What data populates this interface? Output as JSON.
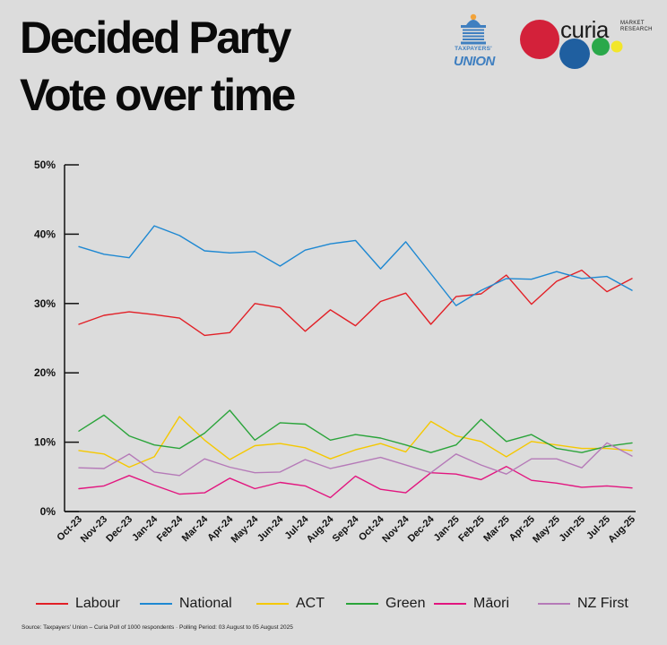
{
  "title_line1": "Decided Party",
  "title_line2": "Vote over time",
  "logos": {
    "taxpayers_union_line1": "TAXPAYERS'",
    "taxpayers_union_line2": "UNION",
    "curia_word": "curia",
    "curia_sub": "MARKET RESEARCH",
    "curia_colors": [
      "#d3213a",
      "#1f5fa0",
      "#2aa84a",
      "#f2e62b"
    ]
  },
  "source": "Source: Taxpayers' Union – Curia Poll of 1000 respondents · Polling Period: 03 August to 05 August 2025",
  "chart_data": {
    "type": "line",
    "title": "Decided Party Vote over time",
    "xlabel": "",
    "ylabel": "",
    "ylim": [
      0,
      50
    ],
    "yticks": [
      0,
      10,
      20,
      30,
      40,
      50
    ],
    "ytick_labels": [
      "0%",
      "10%",
      "20%",
      "30%",
      "40%",
      "50%"
    ],
    "grid": false,
    "legend_position": "bottom",
    "categories": [
      "Oct-23",
      "Nov-23",
      "Dec-23",
      "Jan-24",
      "Feb-24",
      "Mar-24",
      "Apr-24",
      "May-24",
      "Jun-24",
      "Jul-24",
      "Aug-24",
      "Sep-24",
      "Oct-24",
      "Nov-24",
      "Dec-24",
      "Jan-25",
      "Feb-25",
      "Mar-25",
      "Apr-25",
      "May-25",
      "Jun-25",
      "Jul-25",
      "Aug-25"
    ],
    "series": [
      {
        "name": "Labour",
        "color": "#e21f26",
        "values": [
          27.0,
          28.3,
          28.8,
          28.4,
          27.9,
          25.4,
          25.8,
          30.0,
          29.4,
          26.0,
          29.1,
          26.8,
          30.3,
          31.5,
          27.0,
          31.0,
          31.4,
          34.1,
          29.9,
          33.2,
          34.8,
          31.7,
          33.6
        ]
      },
      {
        "name": "National",
        "color": "#1e88d2",
        "values": [
          38.2,
          37.1,
          36.6,
          41.2,
          39.8,
          37.6,
          37.3,
          37.5,
          35.4,
          37.7,
          38.6,
          39.1,
          35.0,
          38.9,
          34.3,
          29.7,
          31.9,
          33.6,
          33.5,
          34.6,
          33.6,
          33.9,
          31.9
        ]
      },
      {
        "name": "ACT",
        "color": "#f5c800",
        "values": [
          8.8,
          8.3,
          6.4,
          7.9,
          13.7,
          10.3,
          7.5,
          9.5,
          9.8,
          9.2,
          7.6,
          8.9,
          9.8,
          8.6,
          13.0,
          10.9,
          10.1,
          7.9,
          10.1,
          9.6,
          9.1,
          9.1,
          8.8
        ]
      },
      {
        "name": "Green",
        "color": "#2aa43a",
        "values": [
          11.6,
          13.9,
          10.9,
          9.6,
          9.1,
          11.3,
          14.6,
          10.3,
          12.8,
          12.6,
          10.3,
          11.1,
          10.6,
          9.6,
          8.5,
          9.6,
          13.3,
          10.1,
          11.1,
          9.1,
          8.5,
          9.4,
          9.9
        ]
      },
      {
        "name": "Māori",
        "color": "#e2157f",
        "values": [
          3.3,
          3.7,
          5.2,
          3.8,
          2.5,
          2.7,
          4.8,
          3.3,
          4.2,
          3.7,
          2.0,
          5.1,
          3.2,
          2.7,
          5.6,
          5.4,
          4.6,
          6.5,
          4.5,
          4.1,
          3.5,
          3.7,
          3.4
        ]
      },
      {
        "name": "NZ First",
        "color": "#b57ab8",
        "values": [
          6.3,
          6.2,
          8.3,
          5.7,
          5.2,
          7.6,
          6.4,
          5.6,
          5.7,
          7.5,
          6.2,
          7.0,
          7.8,
          6.7,
          5.6,
          8.3,
          6.7,
          5.4,
          7.6,
          7.6,
          6.3,
          9.9,
          8.0
        ]
      }
    ]
  }
}
